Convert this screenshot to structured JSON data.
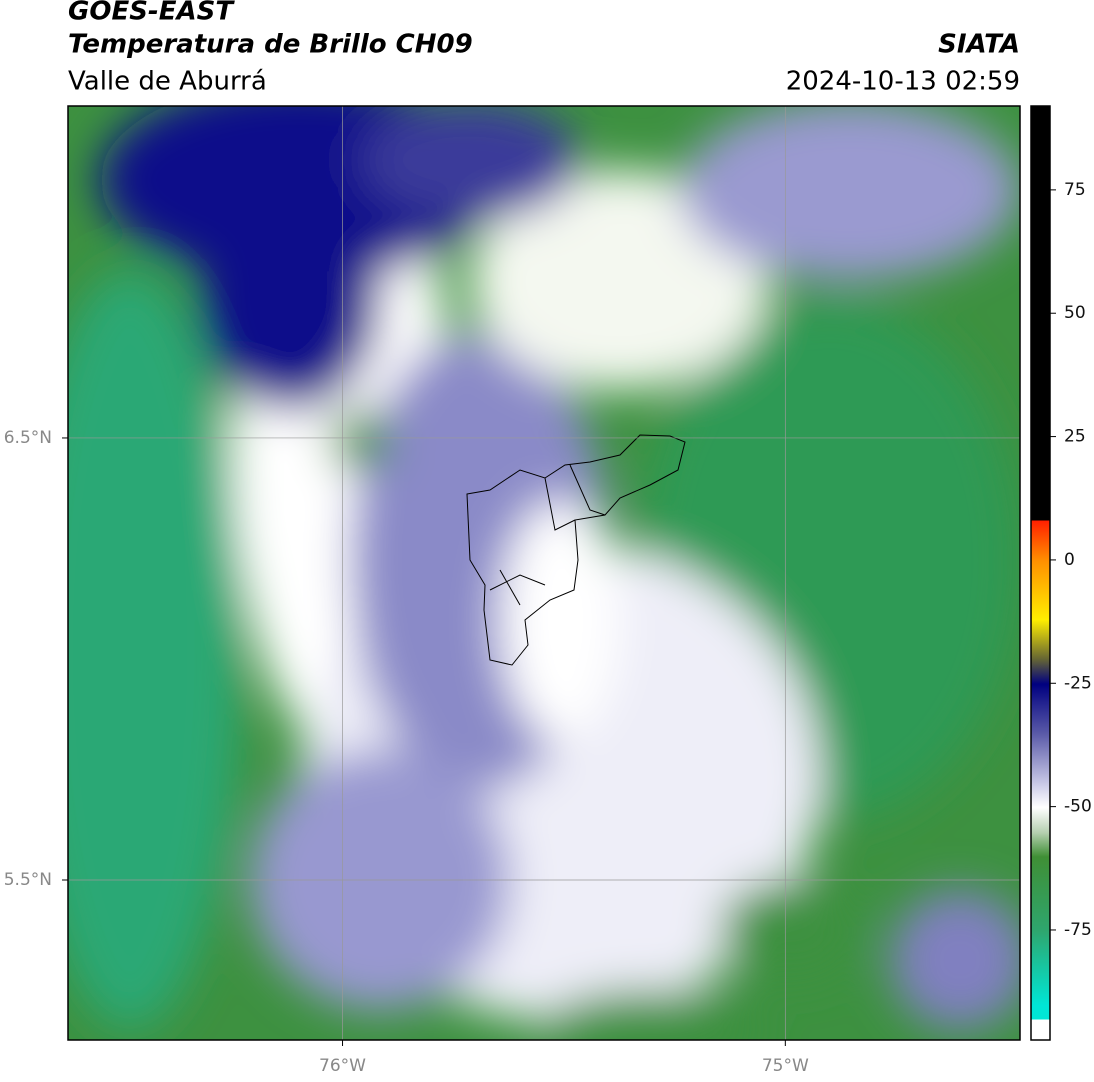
{
  "header": {
    "title": "GOES-EAST",
    "subtitle": "Temperatura de Brillo CH09",
    "region": "Valle de Aburrá",
    "source": "SIATA",
    "datetime": "2024-10-13 02:59"
  },
  "map": {
    "xlim": [
      -76.62,
      -74.47
    ],
    "ylim": [
      5.138,
      7.251
    ],
    "xticks": [
      {
        "value": -76,
        "label": "76°W"
      },
      {
        "value": -75,
        "label": "75°W"
      }
    ],
    "yticks": [
      {
        "value": 6.5,
        "label": "6.5°N"
      },
      {
        "value": 5.5,
        "label": "5.5°N"
      }
    ],
    "grid": true
  },
  "colorbar": {
    "lim": [
      -97.3,
      92
    ],
    "ticks": [
      75,
      50,
      25,
      0,
      -25,
      -50,
      -75
    ]
  }
}
